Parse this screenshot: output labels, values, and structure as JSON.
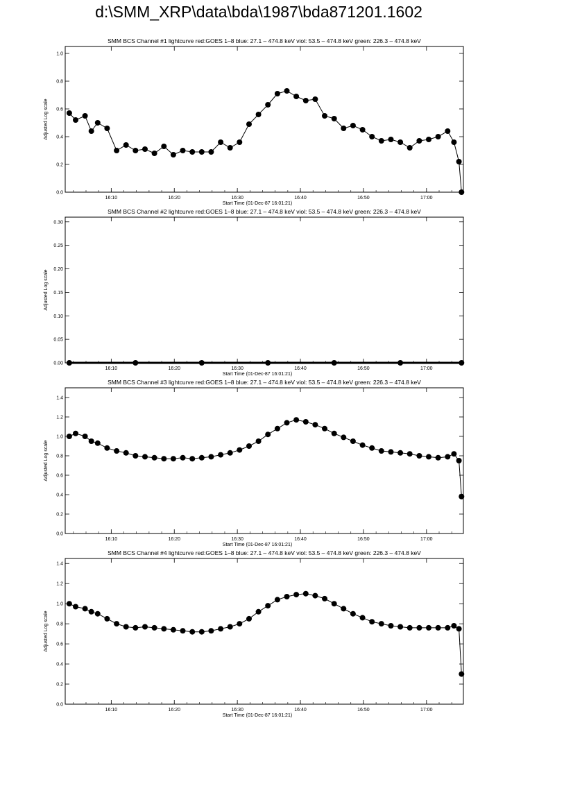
{
  "page": {
    "title": "d:\\SMM_XRP\\data\\bda\\1987\\bda871201.1602"
  },
  "chart_data": [
    {
      "type": "scatter",
      "title": "SMM BCS Channel #1 lightcurve  red:GOES 1–8  blue: 27.1 – 474.8 keV  viol: 53.5 – 474.8 keV  green: 226.3 – 474.8 keV",
      "xlabel": "Start Time (01-Dec-87 16:01:21)",
      "ylabel": "Adjusted Log scale",
      "x_tick_labels": [
        "16:10",
        "16:20",
        "16:30",
        "16:40",
        "16:50",
        "17:00"
      ],
      "y_ticks": [
        "0.0",
        "0.2",
        "0.4",
        "0.6",
        "0.8",
        "1.0"
      ],
      "xlim_minutes": [
        1.35,
        64.5
      ],
      "ylim": [
        0,
        1.05
      ],
      "series": [
        {
          "marker": "filled-circle",
          "color": "#000000",
          "x_minutes": [
            2.0,
            3.0,
            4.5,
            5.5,
            6.5,
            8.0,
            9.5,
            11.0,
            12.5,
            14.0,
            15.5,
            17.0,
            18.5,
            20.0,
            21.5,
            23.0,
            24.5,
            26.0,
            27.5,
            29.0,
            30.5,
            32.0,
            33.5,
            35.0,
            36.5,
            38.0,
            39.5,
            41.0,
            42.5,
            44.0,
            45.5,
            47.0,
            48.5,
            50.0,
            51.5,
            53.0,
            54.5,
            56.0,
            57.5,
            59.0,
            60.5,
            62.0,
            63.0,
            63.8,
            64.2
          ],
          "y": [
            0.57,
            0.52,
            0.55,
            0.44,
            0.5,
            0.46,
            0.3,
            0.34,
            0.3,
            0.31,
            0.28,
            0.33,
            0.27,
            0.3,
            0.29,
            0.29,
            0.29,
            0.36,
            0.32,
            0.36,
            0.49,
            0.56,
            0.63,
            0.71,
            0.73,
            0.69,
            0.66,
            0.67,
            0.55,
            0.53,
            0.46,
            0.48,
            0.45,
            0.4,
            0.37,
            0.38,
            0.36,
            0.32,
            0.37,
            0.38,
            0.4,
            0.44,
            0.36,
            0.22,
            0.0
          ]
        }
      ]
    },
    {
      "type": "scatter",
      "title": "SMM BCS Channel #2 lightcurve  red:GOES 1–8  blue: 27.1 – 474.8 keV  viol: 53.5 – 474.8 keV  green: 226.3 – 474.8 keV",
      "xlabel": "Start Time (01-Dec-87 16:01:21)",
      "ylabel": "Adjusted Log scale",
      "x_tick_labels": [
        "16:10",
        "16:20",
        "16:30",
        "16:40",
        "16:50",
        "17:00"
      ],
      "y_ticks": [
        "0.00",
        "0.05",
        "0.10",
        "0.15",
        "0.20",
        "0.25",
        "0.30"
      ],
      "xlim_minutes": [
        1.35,
        64.5
      ],
      "ylim": [
        0,
        0.31
      ],
      "series": [
        {
          "marker": "filled-circle",
          "color": "#000000",
          "x_minutes": [
            2.0,
            12.5,
            23.0,
            33.5,
            44.0,
            54.5,
            64.2
          ],
          "y": [
            0,
            0,
            0,
            0,
            0,
            0,
            0
          ]
        }
      ]
    },
    {
      "type": "scatter",
      "title": "SMM BCS Channel #3 lightcurve  red:GOES 1–8  blue: 27.1 – 474.8 keV  viol: 53.5 – 474.8 keV  green: 226.3 – 474.8 keV",
      "xlabel": "Start Time (01-Dec-87 16:01:21)",
      "ylabel": "Adjusted Log scale",
      "x_tick_labels": [
        "16:10",
        "16:20",
        "16:30",
        "16:40",
        "16:50",
        "17:00"
      ],
      "y_ticks": [
        "0.0",
        "0.2",
        "0.4",
        "0.6",
        "0.8",
        "1.0",
        "1.2",
        "1.4"
      ],
      "xlim_minutes": [
        1.35,
        64.5
      ],
      "ylim": [
        0,
        1.5
      ],
      "series": [
        {
          "marker": "filled-circle",
          "color": "#000000",
          "x_minutes": [
            2.0,
            3.0,
            4.5,
            5.5,
            6.5,
            8.0,
            9.5,
            11.0,
            12.5,
            14.0,
            15.5,
            17.0,
            18.5,
            20.0,
            21.5,
            23.0,
            24.5,
            26.0,
            27.5,
            29.0,
            30.5,
            32.0,
            33.5,
            35.0,
            36.5,
            38.0,
            39.5,
            41.0,
            42.5,
            44.0,
            45.5,
            47.0,
            48.5,
            50.0,
            51.5,
            53.0,
            54.5,
            56.0,
            57.5,
            59.0,
            60.5,
            62.0,
            63.0,
            63.8,
            64.2
          ],
          "y": [
            1.0,
            1.03,
            1.0,
            0.95,
            0.93,
            0.88,
            0.85,
            0.83,
            0.8,
            0.79,
            0.78,
            0.77,
            0.77,
            0.78,
            0.77,
            0.78,
            0.79,
            0.81,
            0.83,
            0.86,
            0.9,
            0.95,
            1.02,
            1.08,
            1.14,
            1.17,
            1.15,
            1.12,
            1.08,
            1.03,
            0.99,
            0.95,
            0.91,
            0.88,
            0.85,
            0.84,
            0.83,
            0.82,
            0.8,
            0.79,
            0.78,
            0.79,
            0.82,
            0.75,
            0.38
          ]
        }
      ]
    },
    {
      "type": "scatter",
      "title": "SMM BCS Channel #4 lightcurve  red:GOES 1–8  blue: 27.1 – 474.8 keV  viol: 53.5 – 474.8 keV  green: 226.3 – 474.8 keV",
      "xlabel": "Start Time (01-Dec-87 16:01:21)",
      "ylabel": "Adjusted Log scale",
      "x_tick_labels": [
        "16:10",
        "16:20",
        "16:30",
        "16:40",
        "16:50",
        "17:00"
      ],
      "y_ticks": [
        "0.0",
        "0.2",
        "0.4",
        "0.6",
        "0.8",
        "1.0",
        "1.2",
        "1.4"
      ],
      "xlim_minutes": [
        1.35,
        64.5
      ],
      "ylim": [
        0,
        1.45
      ],
      "series": [
        {
          "marker": "filled-circle",
          "color": "#000000",
          "x_minutes": [
            2.0,
            3.0,
            4.5,
            5.5,
            6.5,
            8.0,
            9.5,
            11.0,
            12.5,
            14.0,
            15.5,
            17.0,
            18.5,
            20.0,
            21.5,
            23.0,
            24.5,
            26.0,
            27.5,
            29.0,
            30.5,
            32.0,
            33.5,
            35.0,
            36.5,
            38.0,
            39.5,
            41.0,
            42.5,
            44.0,
            45.5,
            47.0,
            48.5,
            50.0,
            51.5,
            53.0,
            54.5,
            56.0,
            57.5,
            59.0,
            60.5,
            62.0,
            63.0,
            63.8,
            64.2
          ],
          "y": [
            1.0,
            0.97,
            0.95,
            0.92,
            0.9,
            0.85,
            0.8,
            0.77,
            0.76,
            0.77,
            0.76,
            0.75,
            0.74,
            0.73,
            0.72,
            0.72,
            0.73,
            0.75,
            0.77,
            0.8,
            0.85,
            0.92,
            0.98,
            1.04,
            1.07,
            1.09,
            1.1,
            1.08,
            1.05,
            1.0,
            0.95,
            0.9,
            0.86,
            0.82,
            0.8,
            0.78,
            0.77,
            0.76,
            0.76,
            0.76,
            0.76,
            0.76,
            0.78,
            0.75,
            0.3
          ]
        }
      ]
    }
  ]
}
